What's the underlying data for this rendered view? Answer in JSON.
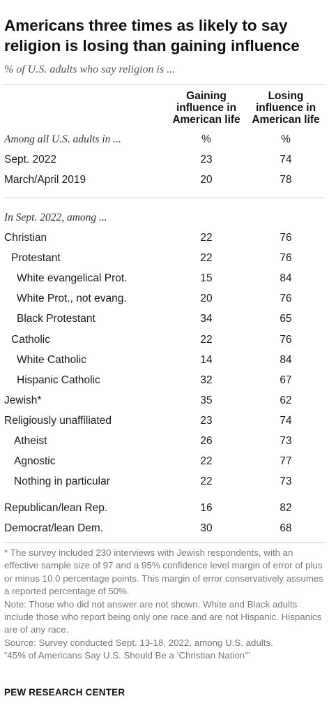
{
  "title": "Americans three times as likely to say religion is losing than gaining influence",
  "subtitle": "% of U.S. adults who say religion is ...",
  "chart_data": {
    "type": "table",
    "columns": [
      "Gaining influence in American life",
      "Losing influence in American life"
    ],
    "sections": [
      {
        "heading": "Among all U.S. adults in ...",
        "units": [
          "%",
          "%"
        ],
        "rows": [
          {
            "label": "Sept. 2022",
            "gaining": 23,
            "losing": 74
          },
          {
            "label": "March/April 2019",
            "gaining": 20,
            "losing": 78
          }
        ]
      },
      {
        "heading": "In Sept. 2022, among ...",
        "rows": [
          {
            "label": "Christian",
            "gaining": 22,
            "losing": 76
          },
          {
            "label": "Protestant",
            "gaining": 22,
            "losing": 76
          },
          {
            "label": "White evangelical Prot.",
            "gaining": 15,
            "losing": 84
          },
          {
            "label": "White Prot., not evang.",
            "gaining": 20,
            "losing": 76
          },
          {
            "label": "Black Protestant",
            "gaining": 34,
            "losing": 65
          },
          {
            "label": "Catholic",
            "gaining": 22,
            "losing": 76
          },
          {
            "label": "White Catholic",
            "gaining": 14,
            "losing": 84
          },
          {
            "label": "Hispanic Catholic",
            "gaining": 32,
            "losing": 67
          },
          {
            "label": "Jewish*",
            "gaining": 35,
            "losing": 62
          },
          {
            "label": "Religiously unaffiliated",
            "gaining": 23,
            "losing": 74
          },
          {
            "label": "Atheist",
            "gaining": 26,
            "losing": 73
          },
          {
            "label": "Agnostic",
            "gaining": 22,
            "losing": 77
          },
          {
            "label": "Nothing in particular",
            "gaining": 22,
            "losing": 73
          },
          {
            "label": "Republican/lean Rep.",
            "gaining": 16,
            "losing": 82
          },
          {
            "label": "Democrat/lean Dem.",
            "gaining": 30,
            "losing": 68
          }
        ]
      }
    ]
  },
  "notes": [
    "* The survey included 230 interviews with Jewish respondents, with an effective sample size of 97 and a 95% confidence level margin of error of plus or minus 10.0 percentage points. This margin of error conservatively assumes a reported percentage of 50%.",
    "Note: Those who did not answer are not shown. White and Black adults include those who report being only one race and are not Hispanic. Hispanics are of any race.",
    "Source: Survey conducted Sept. 13-18, 2022, among U.S. adults.",
    "“45% of Americans Say U.S. Should Be a ‘Christian Nation’”"
  ],
  "brand": "PEW RESEARCH CENTER"
}
